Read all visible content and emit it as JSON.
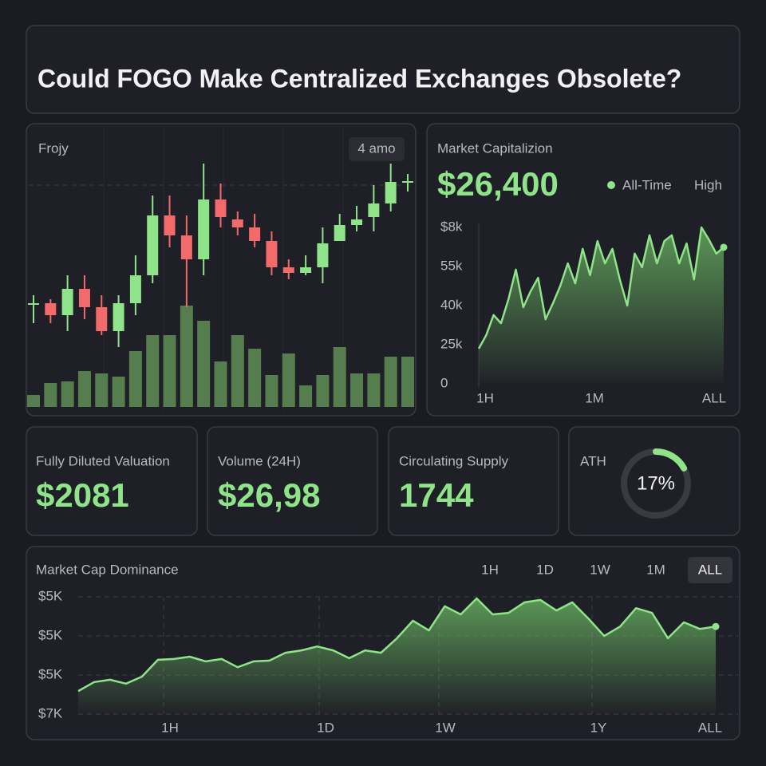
{
  "title": "Could FOGO Make Centralized Exchanges Obsolete?",
  "chart_data": [
    {
      "type": "candlestick",
      "title": "Frojy",
      "badge": "4 amo",
      "ylim": [
        0,
        250
      ],
      "volume_lim": [
        0,
        130
      ],
      "up_color": "#8fe388",
      "down_color": "#f26a6a",
      "volume_color": "#557d4e",
      "open": [
        68,
        70,
        55,
        88,
        65,
        35,
        70,
        105,
        180,
        155,
        125,
        200,
        175,
        165,
        148,
        115,
        108,
        115,
        148,
        168,
        178,
        195,
        222
      ],
      "close": [
        70,
        55,
        88,
        65,
        35,
        70,
        105,
        180,
        155,
        125,
        200,
        178,
        165,
        148,
        115,
        108,
        115,
        145,
        168,
        175,
        195,
        222,
        223
      ],
      "high": [
        80,
        75,
        105,
        105,
        80,
        80,
        130,
        205,
        205,
        180,
        245,
        220,
        185,
        182,
        160,
        125,
        130,
        165,
        182,
        192,
        218,
        245,
        232
      ],
      "low": [
        45,
        45,
        35,
        50,
        30,
        15,
        55,
        95,
        140,
        65,
        105,
        165,
        155,
        140,
        105,
        100,
        105,
        95,
        150,
        160,
        160,
        185,
        210
      ],
      "volume": [
        15,
        30,
        32,
        45,
        42,
        38,
        70,
        90,
        90,
        127,
        108,
        57,
        90,
        73,
        40,
        67,
        27,
        40,
        75,
        42,
        42,
        63,
        63
      ]
    },
    {
      "type": "area",
      "title": "Market Capitalizion",
      "headline": "$26,400",
      "legend": [
        "All-Time",
        "High"
      ],
      "color": "#8fe388",
      "ylim": [
        0,
        4
      ],
      "y_labels": [
        "0",
        "25k",
        "40k",
        "55k",
        "$8k"
      ],
      "x_labels": [
        "1H",
        "1M",
        "ALL"
      ],
      "values": [
        0.9,
        1.24,
        1.76,
        1.55,
        2.16,
        2.92,
        1.96,
        2.37,
        2.71,
        1.65,
        2.06,
        2.51,
        3.08,
        2.57,
        3.45,
        2.78,
        3.65,
        3.08,
        3.45,
        2.67,
        2.0,
        3.33,
        2.98,
        3.8,
        3.08,
        3.65,
        3.8,
        3.08,
        3.59,
        2.67,
        4.0,
        3.69,
        3.33,
        3.49
      ]
    },
    {
      "type": "area",
      "title": "Market Cap Dominance",
      "ranges": [
        "1H",
        "1D",
        "1W",
        "1M",
        "ALL"
      ],
      "active_range": 4,
      "color": "#8fe388",
      "ylim": [
        0,
        3
      ],
      "y_labels": [
        "$7K",
        "$5K",
        "$5K",
        "$5K"
      ],
      "x_labels": [
        "1H",
        "1D",
        "1W",
        "1Y",
        "ALL"
      ],
      "values": [
        0.59,
        0.82,
        0.88,
        0.78,
        0.96,
        1.39,
        1.41,
        1.47,
        1.35,
        1.41,
        1.2,
        1.35,
        1.37,
        1.57,
        1.63,
        1.73,
        1.63,
        1.43,
        1.63,
        1.57,
        1.94,
        2.39,
        2.14,
        2.76,
        2.55,
        2.96,
        2.55,
        2.59,
        2.86,
        2.92,
        2.65,
        2.86,
        2.45,
        2.0,
        2.24,
        2.71,
        2.59,
        1.94,
        2.35,
        2.18,
        2.24
      ]
    }
  ],
  "cards": [
    {
      "label": "Fully Diluted Valuation",
      "value": "$2081"
    },
    {
      "label": "Volume (24H)",
      "value": "$26,98"
    },
    {
      "label": "Circulating Supply",
      "value": "1744"
    },
    {
      "label": "ATH",
      "value": 17,
      "value_label": "17%"
    }
  ]
}
